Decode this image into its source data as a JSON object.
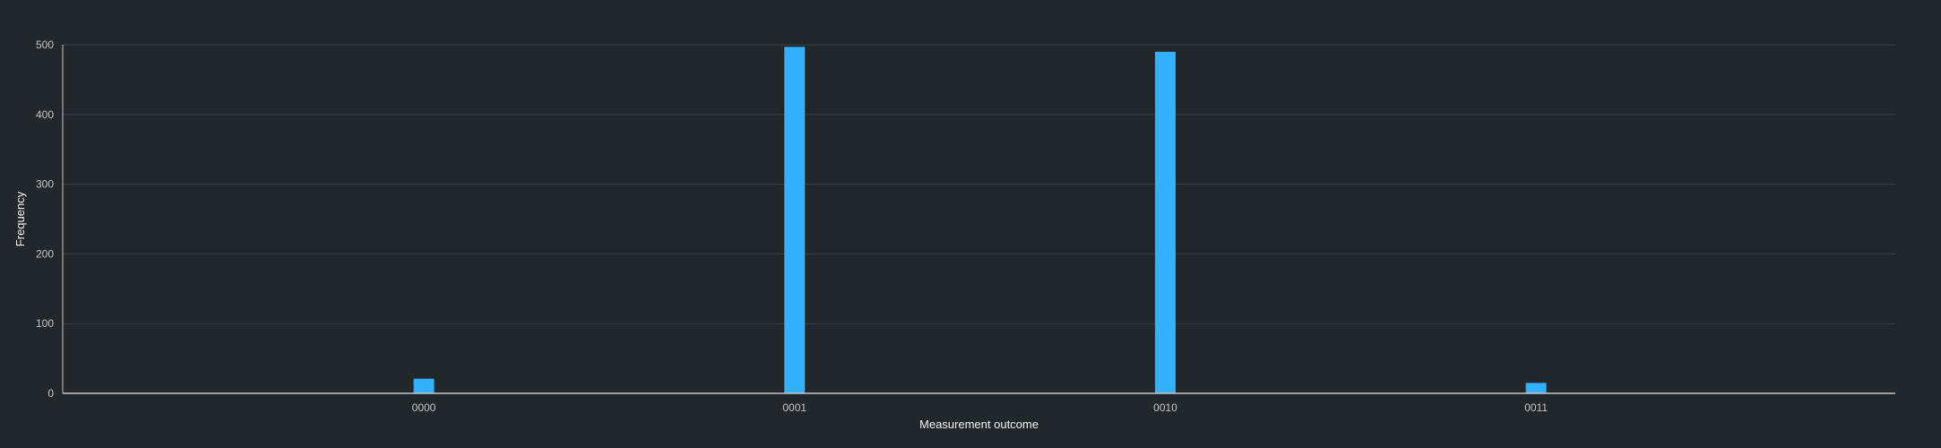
{
  "chart_data": {
    "type": "bar",
    "title": "",
    "xlabel": "Measurement outcome",
    "ylabel": "Frequency",
    "categories": [
      "0000",
      "0001",
      "0010",
      "0011"
    ],
    "values": [
      21,
      497,
      490,
      15
    ],
    "ylim": [
      0,
      500
    ],
    "yticks": [
      0,
      100,
      200,
      300,
      400,
      500
    ],
    "grid": true,
    "legend": "none",
    "colors": {
      "bar": "#33b1ff",
      "background": "#21272b",
      "grid": "#393f44",
      "axis": "#c6c6c6",
      "tick_text": "#c6c6c6",
      "label_text": "#f4f4f4"
    }
  }
}
